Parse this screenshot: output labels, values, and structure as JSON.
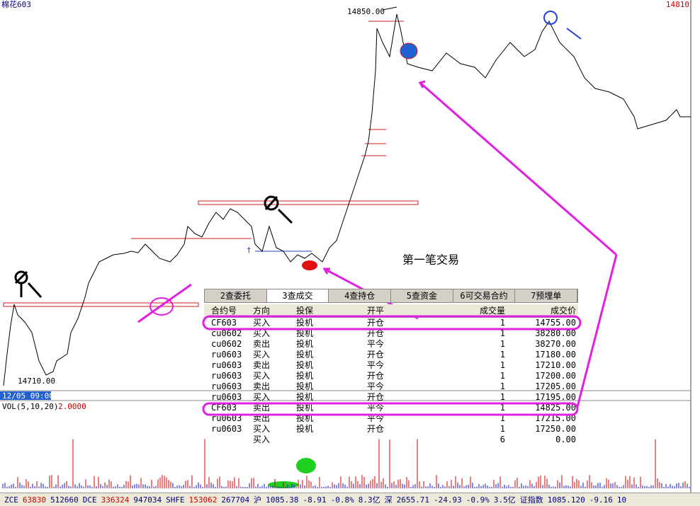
{
  "header": {
    "symbol": "棉花603",
    "last": "14810"
  },
  "labels": {
    "high": "14850.00",
    "low": "14710.00",
    "time": "12/05 09:00",
    "vol_label": "VOL(5,10,20)",
    "vol_value": "2.0000",
    "annotation": "第一笔交易"
  },
  "tabs": [
    "2查委托",
    "3查成交",
    "4查持仓",
    "5查资金",
    "6可交易合约",
    "7预埋单"
  ],
  "table": {
    "columns": [
      "合约号",
      "方向",
      "投保",
      "开平",
      "成交量",
      "成交价"
    ],
    "rows": [
      [
        "CF603",
        "买入",
        "投机",
        "开仓",
        "1",
        "14755.00"
      ],
      [
        "cu0602",
        "买入",
        "投机",
        "开仓",
        "1",
        "38280.00"
      ],
      [
        "cu0602",
        "卖出",
        "投机",
        "平今",
        "1",
        "38270.00"
      ],
      [
        "ru0603",
        "买入",
        "投机",
        "开仓",
        "1",
        "17180.00"
      ],
      [
        "ru0603",
        "卖出",
        "投机",
        "平今",
        "1",
        "17210.00"
      ],
      [
        "ru0603",
        "买入",
        "投机",
        "开仓",
        "1",
        "17200.00"
      ],
      [
        "ru0603",
        "卖出",
        "投机",
        "平今",
        "1",
        "17205.00"
      ],
      [
        "ru0603",
        "买入",
        "投机",
        "开仓",
        "1",
        "17195.00"
      ],
      [
        "CF603",
        "卖出",
        "投机",
        "平今",
        "1",
        "14825.00"
      ],
      [
        "ru0603",
        "卖出",
        "投机",
        "平今",
        "1",
        "17215.00"
      ],
      [
        "ru0603",
        "买入",
        "投机",
        "开仓",
        "1",
        "17250.00"
      ],
      [
        null,
        "买入",
        null,
        null,
        "6",
        "0.00"
      ]
    ]
  },
  "status_bar": [
    {
      "text": "ZCE",
      "color": "#000080"
    },
    {
      "text": "63830",
      "color": "#d00000"
    },
    {
      "text": "512660",
      "color": "#000080"
    },
    {
      "text": "DCE",
      "color": "#000080"
    },
    {
      "text": "336324",
      "color": "#d00000"
    },
    {
      "text": "947034",
      "color": "#000080"
    },
    {
      "text": "SHFE",
      "color": "#000080"
    },
    {
      "text": "153062",
      "color": "#d00000"
    },
    {
      "text": "267704",
      "color": "#000080"
    },
    {
      "text": "沪",
      "color": "#000080"
    },
    {
      "text": "1085.38",
      "color": "#000080"
    },
    {
      "text": "-8.91",
      "color": "#000080"
    },
    {
      "text": "-0.8%",
      "color": "#000080"
    },
    {
      "text": "8.3亿",
      "color": "#000080"
    },
    {
      "text": "深",
      "color": "#000080"
    },
    {
      "text": "2655.71",
      "color": "#000080"
    },
    {
      "text": "-24.93",
      "color": "#000080"
    },
    {
      "text": "-0.9%",
      "color": "#000080"
    },
    {
      "text": "3.5亿",
      "color": "#000080"
    },
    {
      "text": "证指数",
      "color": "#000080"
    },
    {
      "text": "1085.120",
      "color": "#000080"
    },
    {
      "text": "-9.16",
      "color": "#000080"
    },
    {
      "text": "10",
      "color": "#000080"
    }
  ]
}
